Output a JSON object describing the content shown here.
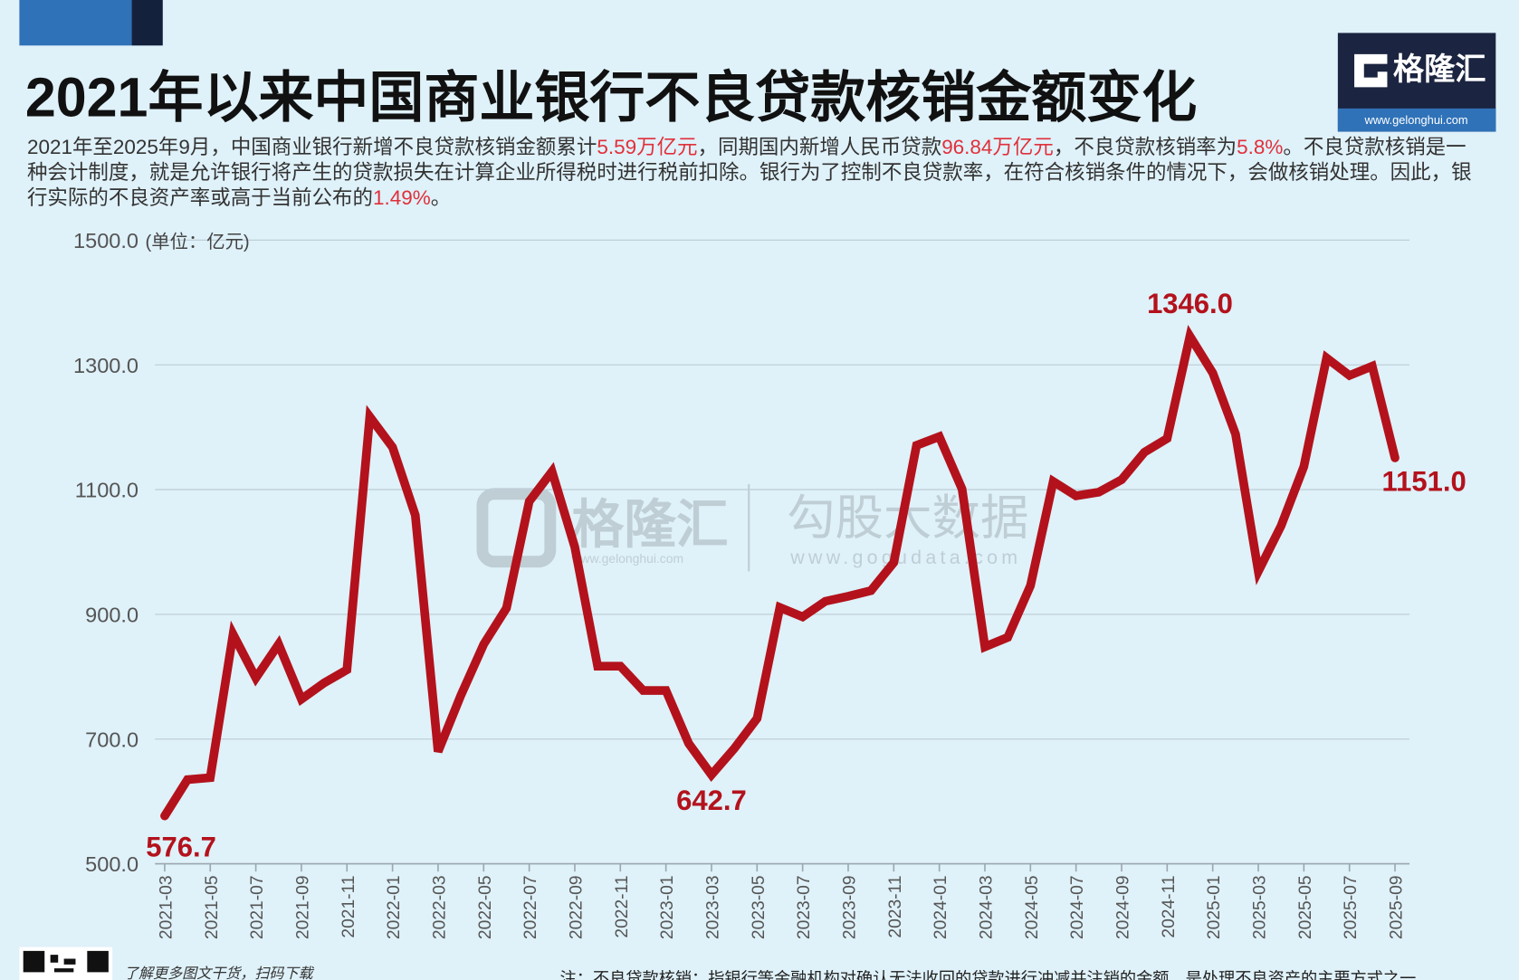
{
  "chart_data": {
    "type": "line",
    "title": "2021年以来中国商业银行不良贷款核销金额变化",
    "description": [
      "2021年至2025年9月，中国商业银行新增不良贷款核销金额累计",
      "5.59万亿元",
      "，同期国内新增人民币贷款",
      "96.84万亿元",
      "，不良贷款核销率为",
      "5.8%",
      "。不良贷款核销是一种会计制度，就是允许银行将产生的贷款损失在计算企业所得税时进行税前扣除。银行为了控制不良贷款率，在符合核销条件的情况下，会做核销处理。因此，银行实际的不良资产率或高于当前公布的",
      "1.49%",
      "。"
    ],
    "unit": "(单位：亿元)",
    "categories": [
      "2021-03",
      null,
      "2021-05",
      null,
      "2021-07",
      null,
      "2021-09",
      null,
      "2021-11",
      null,
      "2022-01",
      null,
      "2022-03",
      null,
      "2022-05",
      null,
      "2022-07",
      null,
      "2022-09",
      null,
      "2022-11",
      null,
      "2023-01",
      null,
      "2023-03",
      null,
      "2023-05",
      null,
      "2023-07",
      null,
      "2023-09",
      null,
      "2023-11",
      null,
      "2024-01",
      null,
      "2024-03",
      null,
      "2024-05",
      null,
      "2024-07",
      null,
      "2024-09",
      null,
      "2024-11",
      null,
      "2025-01",
      null,
      "2025-03",
      null,
      "2025-05",
      null,
      "2025-07",
      null,
      "2025-09"
    ],
    "values": [
      576.7,
      635,
      638,
      868,
      798,
      852,
      764,
      790,
      811,
      1217,
      1168,
      1059,
      680,
      770,
      852,
      910,
      1081,
      1129,
      1008,
      817,
      817,
      778,
      778,
      693,
      642.7,
      685,
      733,
      911,
      896,
      921,
      929,
      938,
      983,
      1171,
      1185,
      1101,
      848,
      863,
      946,
      1113,
      1090,
      1096,
      1116,
      1160,
      1182,
      1346,
      1287,
      1189,
      969,
      1042,
      1137,
      1311,
      1283,
      1298,
      1151
    ],
    "value_labels": [
      "576.7",
      null,
      null,
      null,
      null,
      null,
      null,
      null,
      null,
      null,
      null,
      null,
      null,
      null,
      null,
      null,
      null,
      null,
      null,
      null,
      null,
      null,
      null,
      null,
      "642.7",
      null,
      null,
      null,
      null,
      null,
      null,
      null,
      null,
      null,
      null,
      null,
      null,
      null,
      null,
      null,
      null,
      null,
      null,
      null,
      null,
      "1346.0",
      null,
      null,
      null,
      null,
      null,
      null,
      null,
      null,
      "1151.0"
    ],
    "color": "#b3121c",
    "ylim": [
      500,
      1500
    ],
    "yticks": [
      {
        "value": 500,
        "label": "500.0"
      },
      {
        "value": 700,
        "label": "700.0"
      },
      {
        "value": 900,
        "label": "900.0"
      },
      {
        "value": 1100,
        "label": "1100.0"
      },
      {
        "value": 1300,
        "label": "1300.0"
      },
      {
        "value": 1500,
        "label": "1500.0"
      }
    ],
    "grid": true,
    "logo": {
      "name": "格隆汇",
      "url": "www.gelonghui.com"
    },
    "watermark": [
      "格隆汇",
      "www.gelonghui.com",
      "勾股大数据",
      "www.gogudata.com"
    ],
    "qr_caption": "了解更多图文干货，扫码下载",
    "note": "注：不良贷款核销：指银行等金融机构对确认无法收回的贷款进行冲减并注销的金额，是处理不良资产的主要方式之一。"
  }
}
